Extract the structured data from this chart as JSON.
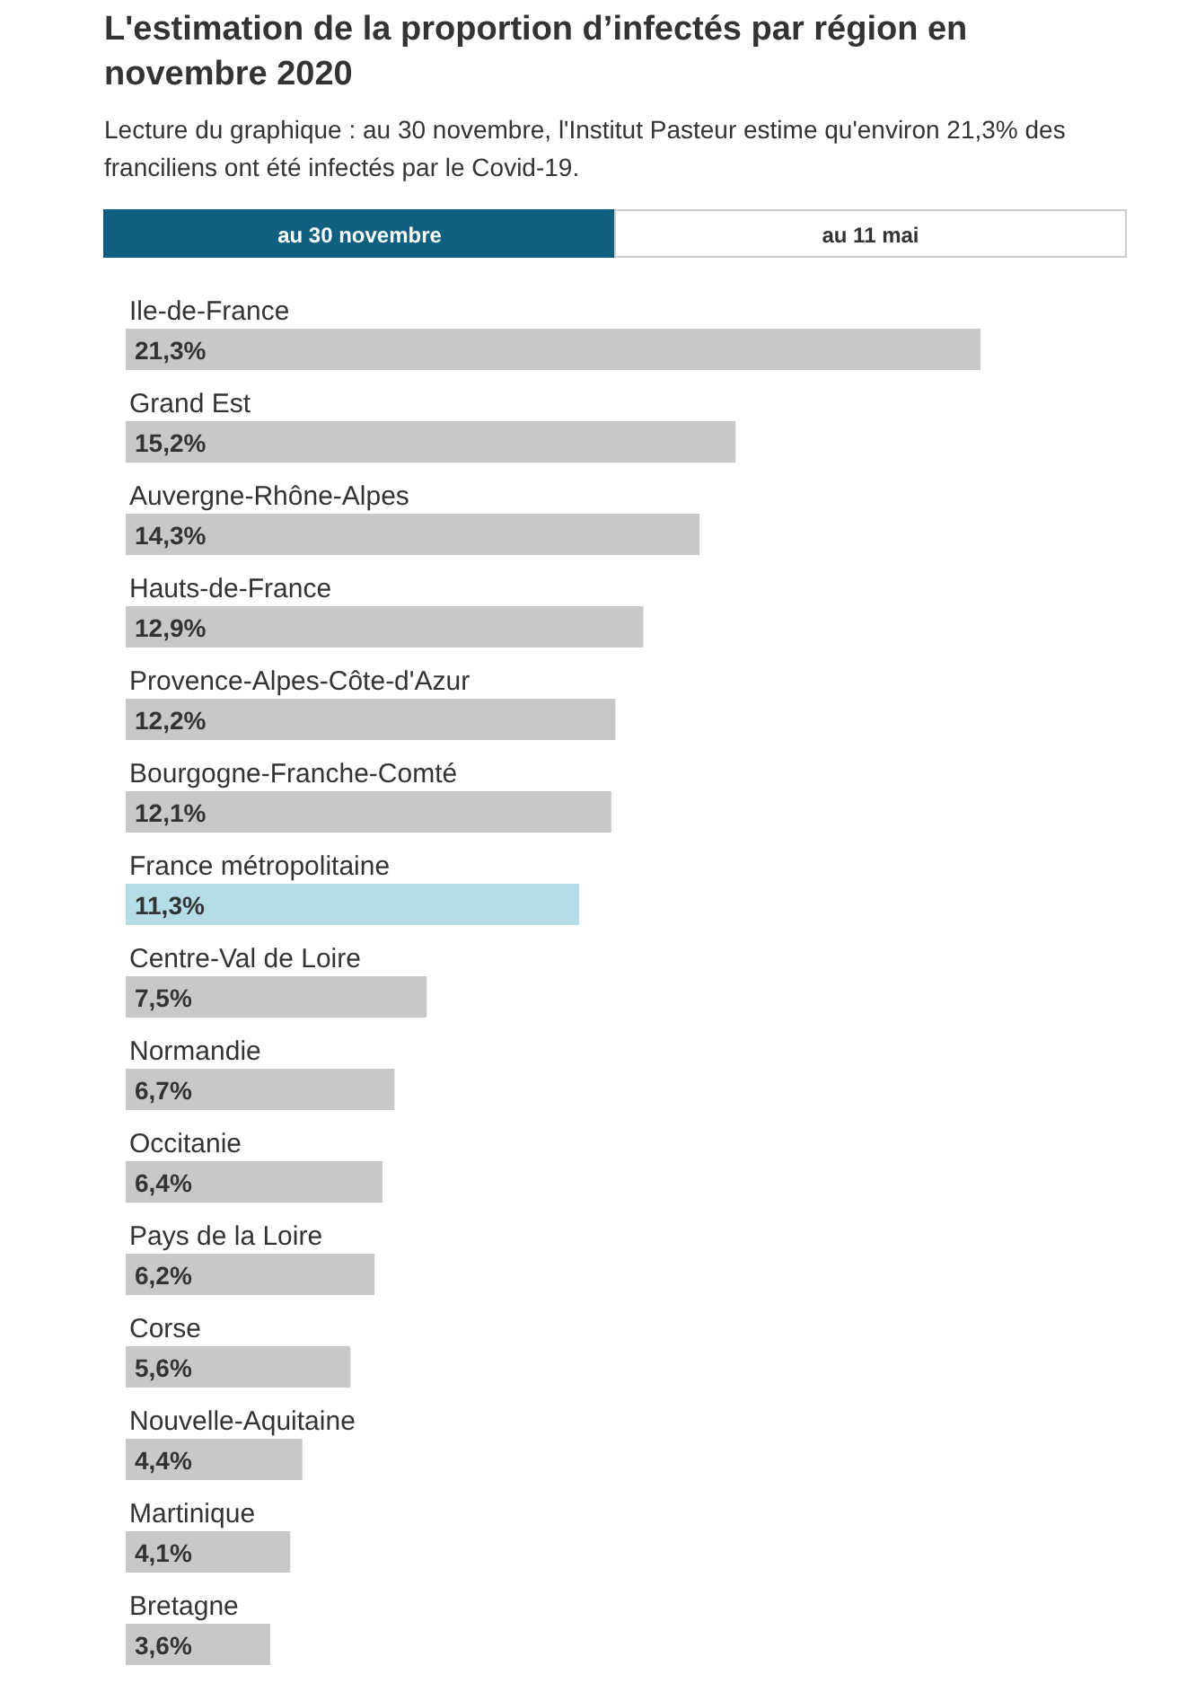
{
  "chart_data": {
    "type": "bar",
    "orientation": "horizontal",
    "title": "L'estimation de la proportion d’infectés par région en novembre 2020",
    "subtitle": "Lecture du graphique : au 30 novembre, l'Institut Pasteur estime qu'environ 21,3% des franciliens ont été infectés par le Covid-19.",
    "annotations": [
      "au 30 novembre",
      "au 11 mai"
    ],
    "categories": [
      "Ile-de-France",
      "Grand Est",
      "Auvergne-Rhône-Alpes",
      "Hauts-de-France",
      "Provence-Alpes-Côte-d'Azur",
      "Bourgogne-Franche-Comté",
      "France métropolitaine",
      "Centre-Val de Loire",
      "Normandie",
      "Occitanie",
      "Pays de la Loire",
      "Corse",
      "Nouvelle-Aquitaine",
      "Martinique",
      "Bretagne"
    ],
    "values": [
      21.3,
      15.2,
      14.3,
      12.9,
      12.2,
      12.1,
      11.3,
      7.5,
      6.7,
      6.4,
      6.2,
      5.6,
      4.4,
      4.1,
      3.6
    ],
    "value_labels": [
      "21,3%",
      "15,2%",
      "14,3%",
      "12,9%",
      "12,2%",
      "12,1%",
      "11,3%",
      "7,5%",
      "6,7%",
      "6,4%",
      "6,2%",
      "5,6%",
      "4,4%",
      "4,1%",
      "3,6%"
    ],
    "colors": [
      "#c8c8c8",
      "#c8c8c8",
      "#c8c8c8",
      "#c8c8c8",
      "#c8c8c8",
      "#c8c8c8",
      "#b5dde8",
      "#c8c8c8",
      "#c8c8c8",
      "#c8c8c8",
      "#c8c8c8",
      "#c8c8c8",
      "#c8c8c8",
      "#c8c8c8",
      "#c8c8c8"
    ]
  }
}
